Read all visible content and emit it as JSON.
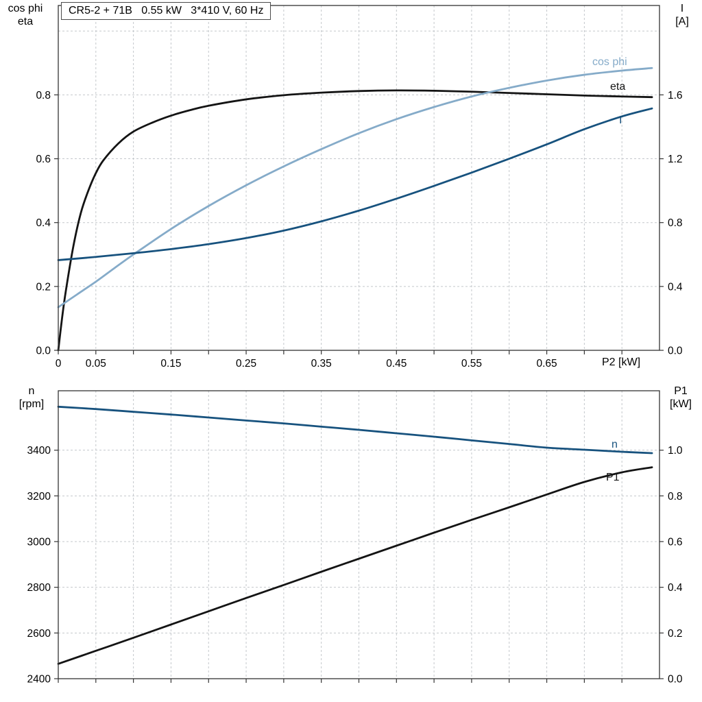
{
  "title": "CR5-2 + 71B   0.55 kW   3*410 V, 60 Hz",
  "colors": {
    "black": "#141414",
    "dark_blue": "#17527e",
    "light_blue": "#85abc9",
    "grid": "#c3c7cb",
    "frame": "#333333"
  },
  "axes_labels": {
    "top_left_1": "cos phi",
    "top_left_2": "eta",
    "top_right_1": "I",
    "top_right_2": "[A]",
    "top_x_unit": "P2 [kW]",
    "bottom_left_1": "n",
    "bottom_left_2": "[rpm]",
    "bottom_right_1": "P1",
    "bottom_right_2": "[kW]"
  },
  "curve_labels": {
    "cos_phi": "cos phi",
    "eta": "eta",
    "current": "I",
    "speed": "n",
    "power_in": "P1"
  },
  "chart_data": [
    {
      "type": "line",
      "title": "CR5-2 + 71B   0.55 kW   3*410 V, 60 Hz",
      "grid_on": true,
      "x_axis": {
        "label": "P2 [kW]",
        "lim": [
          0,
          0.8
        ],
        "minor_step": 0.05,
        "tick_values": [
          0,
          0.05,
          0.15,
          0.25,
          0.35,
          0.45,
          0.55,
          0.65
        ],
        "tick_labels": [
          "0",
          "0.05",
          "0.15",
          "0.25",
          "0.35",
          "0.45",
          "0.55",
          "0.65"
        ]
      },
      "left_axis": {
        "label": "cos phi / eta",
        "lim": [
          0,
          1.08
        ],
        "tick_values": [
          0,
          0.2,
          0.4,
          0.6,
          0.8
        ],
        "tick_labels": [
          "0.0",
          "0.2",
          "0.4",
          "0.6",
          "0.8"
        ]
      },
      "right_axis": {
        "label": "I [A]",
        "lim": [
          0,
          2.16
        ],
        "tick_values": [
          0,
          0.4,
          0.8,
          1.2,
          1.6
        ],
        "tick_labels": [
          "0.0",
          "0.4",
          "0.8",
          "1.2",
          "1.6"
        ]
      },
      "grid": {
        "x": [
          0.05,
          0.1,
          0.15,
          0.2,
          0.25,
          0.3,
          0.35,
          0.4,
          0.45,
          0.5,
          0.55,
          0.6,
          0.65,
          0.7,
          0.75
        ],
        "y_left": [
          0.2,
          0.4,
          0.6,
          0.8,
          1.0
        ]
      },
      "series": [
        {
          "id": "eta",
          "name": "eta",
          "axis": "left",
          "color_key": "black",
          "x": [
            0,
            0.005,
            0.01,
            0.02,
            0.03,
            0.04,
            0.05,
            0.06,
            0.08,
            0.1,
            0.125,
            0.15,
            0.175,
            0.2,
            0.25,
            0.3,
            0.35,
            0.4,
            0.45,
            0.5,
            0.55,
            0.6,
            0.65,
            0.7,
            0.75,
            0.79
          ],
          "y": [
            0,
            0.1,
            0.185,
            0.325,
            0.43,
            0.5,
            0.555,
            0.595,
            0.648,
            0.685,
            0.713,
            0.735,
            0.752,
            0.766,
            0.786,
            0.799,
            0.807,
            0.812,
            0.814,
            0.813,
            0.81,
            0.806,
            0.802,
            0.798,
            0.795,
            0.793
          ]
        },
        {
          "id": "cos_phi",
          "name": "cos phi",
          "axis": "left",
          "color_key": "light_blue",
          "x": [
            0,
            0.025,
            0.05,
            0.075,
            0.1,
            0.15,
            0.2,
            0.25,
            0.3,
            0.35,
            0.4,
            0.45,
            0.5,
            0.55,
            0.6,
            0.65,
            0.7,
            0.75,
            0.79
          ],
          "y": [
            0.135,
            0.175,
            0.215,
            0.258,
            0.3,
            0.38,
            0.452,
            0.517,
            0.576,
            0.63,
            0.68,
            0.724,
            0.762,
            0.795,
            0.822,
            0.845,
            0.863,
            0.876,
            0.884
          ]
        },
        {
          "id": "current",
          "name": "I",
          "axis": "right",
          "color_key": "dark_blue",
          "x": [
            0,
            0.05,
            0.1,
            0.15,
            0.2,
            0.25,
            0.3,
            0.35,
            0.4,
            0.45,
            0.5,
            0.55,
            0.6,
            0.65,
            0.7,
            0.75,
            0.79
          ],
          "y": [
            0.565,
            0.585,
            0.608,
            0.634,
            0.665,
            0.703,
            0.75,
            0.808,
            0.875,
            0.95,
            1.03,
            1.113,
            1.2,
            1.29,
            1.385,
            1.465,
            1.515
          ]
        }
      ]
    },
    {
      "type": "line",
      "title": "",
      "grid_on": true,
      "x_axis": {
        "label": "",
        "lim": [
          0,
          0.8
        ],
        "minor_step": 0.05,
        "tick_values": [],
        "tick_labels": []
      },
      "left_axis": {
        "label": "n [rpm]",
        "lim": [
          2400,
          3660
        ],
        "tick_values": [
          2400,
          2600,
          2800,
          3000,
          3200,
          3400
        ],
        "tick_labels": [
          "2400",
          "2600",
          "2800",
          "3000",
          "3200",
          "3400"
        ]
      },
      "right_axis": {
        "label": "P1 [kW]",
        "lim": [
          0,
          1.26
        ],
        "tick_values": [
          0,
          0.2,
          0.4,
          0.6,
          0.8,
          1.0
        ],
        "tick_labels": [
          "0.0",
          "0.2",
          "0.4",
          "0.6",
          "0.8",
          "1.0"
        ]
      },
      "grid": {
        "x": [
          0.05,
          0.1,
          0.15,
          0.2,
          0.25,
          0.3,
          0.35,
          0.4,
          0.45,
          0.5,
          0.55,
          0.6,
          0.65,
          0.7,
          0.75
        ],
        "y_left": [
          2600,
          2800,
          3000,
          3200,
          3400
        ]
      },
      "series": [
        {
          "id": "speed",
          "name": "n",
          "axis": "left",
          "color_key": "dark_blue",
          "x": [
            0,
            0.05,
            0.1,
            0.15,
            0.2,
            0.25,
            0.3,
            0.35,
            0.4,
            0.45,
            0.5,
            0.55,
            0.6,
            0.65,
            0.7,
            0.75,
            0.79
          ],
          "y": [
            3590,
            3580,
            3568,
            3556,
            3543,
            3530,
            3517,
            3503,
            3489,
            3474,
            3459,
            3443,
            3427,
            3411,
            3402,
            3393,
            3387
          ]
        },
        {
          "id": "power_in",
          "name": "P1",
          "axis": "right",
          "color_key": "black",
          "x": [
            0,
            0.05,
            0.1,
            0.15,
            0.2,
            0.25,
            0.3,
            0.35,
            0.4,
            0.45,
            0.5,
            0.55,
            0.6,
            0.65,
            0.7,
            0.75,
            0.79
          ],
          "y": [
            0.065,
            0.122,
            0.179,
            0.237,
            0.295,
            0.353,
            0.41,
            0.468,
            0.525,
            0.582,
            0.639,
            0.695,
            0.75,
            0.806,
            0.861,
            0.903,
            0.925
          ]
        }
      ]
    }
  ]
}
